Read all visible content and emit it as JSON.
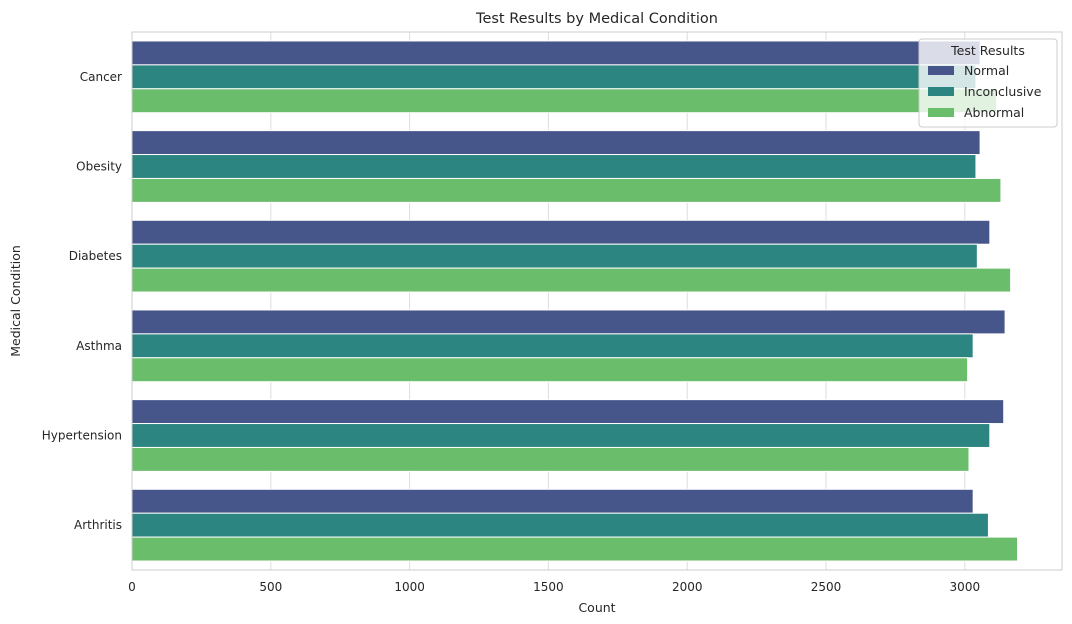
{
  "chart_data": {
    "type": "bar",
    "orientation": "horizontal",
    "title": "Test Results by Medical Condition",
    "xlabel": "Count",
    "ylabel": "Medical Condition",
    "xlim": [
      0,
      3350
    ],
    "xticks": [
      0,
      500,
      1000,
      1500,
      2000,
      2500,
      3000
    ],
    "grid": true,
    "categories": [
      "Cancer",
      "Obesity",
      "Diabetes",
      "Asthma",
      "Hypertension",
      "Arthritis"
    ],
    "series": [
      {
        "name": "Normal",
        "color": "#46568a",
        "values": [
          3055,
          3055,
          3090,
          3145,
          3140,
          3030
        ]
      },
      {
        "name": "Inconclusive",
        "color": "#2c8580",
        "values": [
          3040,
          3040,
          3045,
          3030,
          3090,
          3085
        ]
      },
      {
        "name": "Abnormal",
        "color": "#6abd6b",
        "values": [
          3115,
          3130,
          3165,
          3010,
          3015,
          3190
        ]
      }
    ],
    "legend": {
      "title": "Test Results",
      "placement": "top-right"
    }
  }
}
